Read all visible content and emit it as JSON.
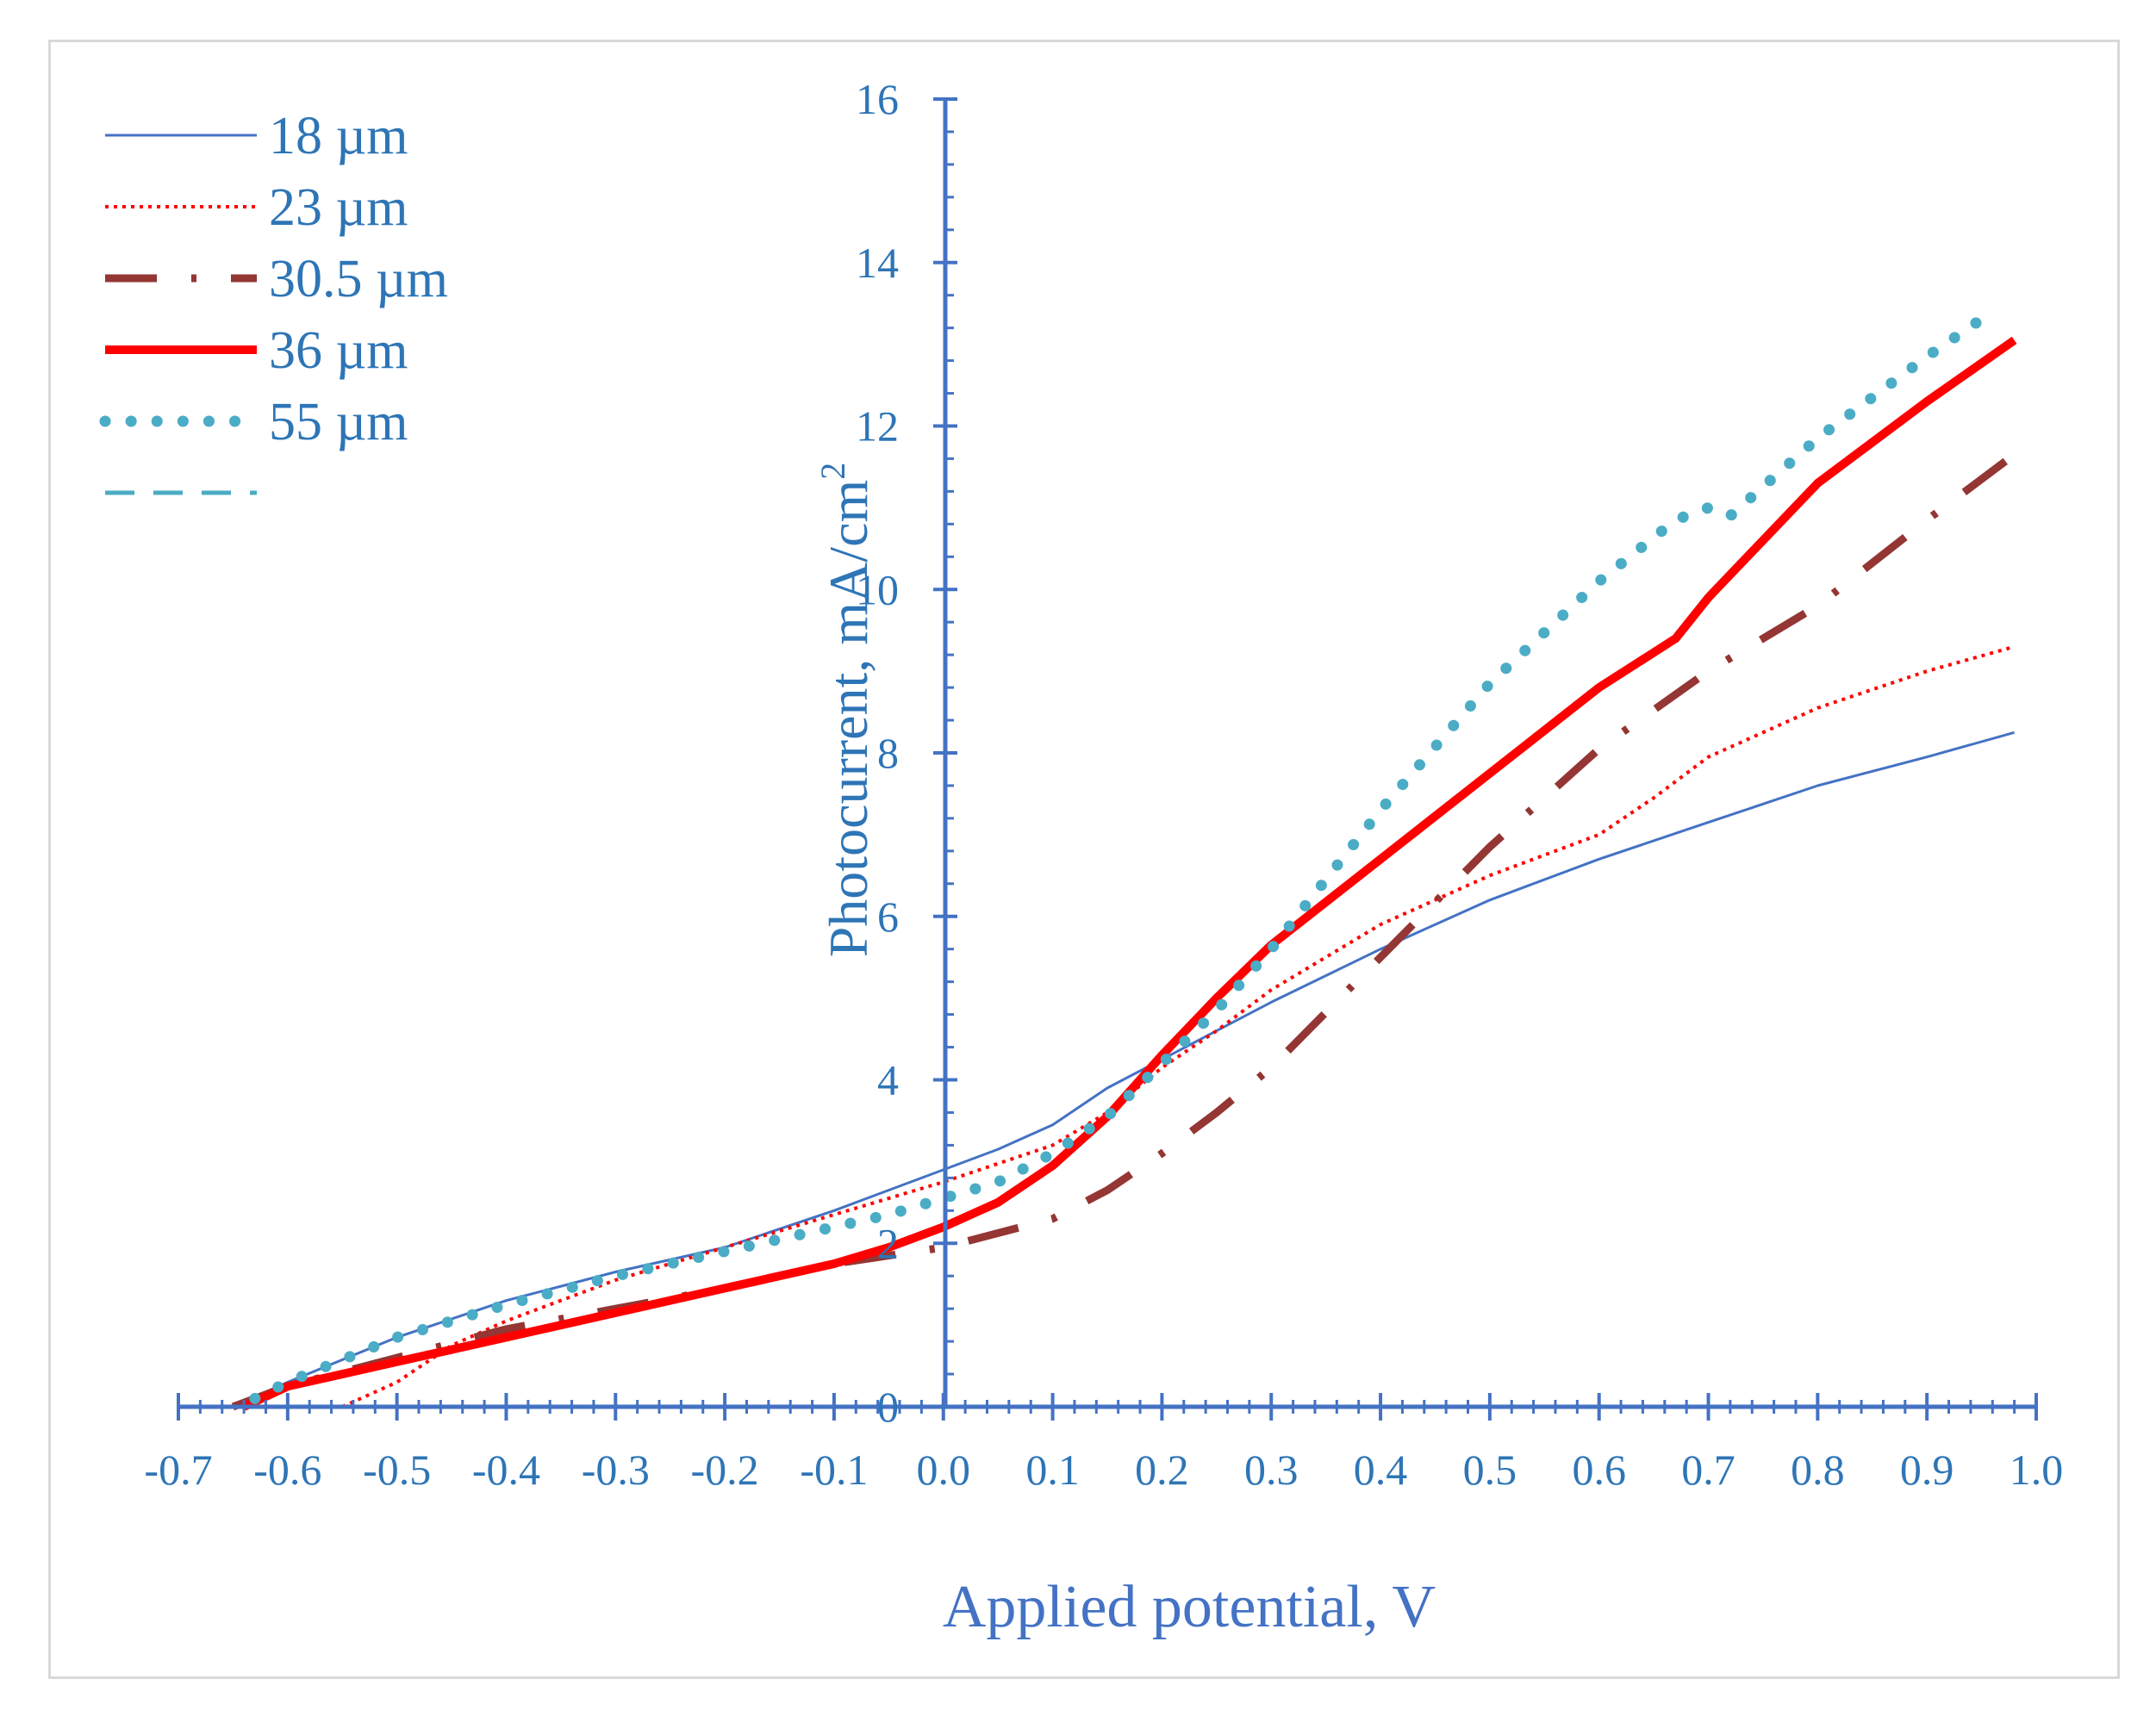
{
  "chart_data": {
    "type": "line",
    "title": "",
    "xlabel": "Applied potential, V",
    "ylabel": "Photocurrent, mA/cm",
    "ylabel_superscript": "2",
    "xlim": [
      -0.7,
      1.0
    ],
    "ylim": [
      0,
      16
    ],
    "x_ticks": [
      "-0.7",
      "-0.6",
      "-0.5",
      "-0.4",
      "-0.3",
      "-0.2",
      "-0.1",
      "0.0",
      "0.1",
      "0.2",
      "0.3",
      "0.4",
      "0.5",
      "0.6",
      "0.7",
      "0.8",
      "0.9",
      "1.0"
    ],
    "y_ticks": [
      "0",
      "2",
      "4",
      "6",
      "8",
      "10",
      "12",
      "14",
      "16"
    ],
    "grid": false,
    "legend_position": "top-left",
    "series": [
      {
        "name": "18 µm",
        "color": "#4472c4",
        "style": "solid-thin",
        "x": [
          -0.65,
          -0.6,
          -0.5,
          -0.4,
          -0.3,
          -0.2,
          -0.1,
          0.0,
          0.05,
          0.1,
          0.15,
          0.2,
          0.25,
          0.3,
          0.4,
          0.5,
          0.6,
          0.7,
          0.8,
          0.9,
          0.98
        ],
        "values": [
          0.0,
          0.3,
          0.85,
          1.3,
          1.65,
          1.95,
          2.4,
          2.9,
          3.15,
          3.45,
          3.9,
          4.25,
          4.6,
          4.95,
          5.6,
          6.2,
          6.7,
          7.15,
          7.6,
          7.95,
          8.25
        ]
      },
      {
        "name": "23 µm",
        "color": "#ff0000",
        "style": "dotted",
        "x": [
          -0.55,
          -0.5,
          -0.45,
          -0.4,
          -0.3,
          -0.2,
          -0.1,
          0.0,
          0.1,
          0.15,
          0.2,
          0.25,
          0.3,
          0.4,
          0.5,
          0.6,
          0.65,
          0.7,
          0.8,
          0.9,
          0.98
        ],
        "values": [
          0.0,
          0.3,
          0.75,
          1.05,
          1.55,
          1.95,
          2.35,
          2.75,
          3.2,
          3.6,
          4.15,
          4.6,
          5.1,
          5.9,
          6.5,
          7.0,
          7.45,
          7.95,
          8.55,
          9.0,
          9.3
        ]
      },
      {
        "name": "30.5 µm",
        "color": "#943634",
        "style": "dash-dot",
        "x": [
          -0.65,
          -0.6,
          -0.5,
          -0.4,
          -0.3,
          -0.2,
          -0.1,
          0.0,
          0.1,
          0.15,
          0.2,
          0.25,
          0.3,
          0.4,
          0.5,
          0.6,
          0.7,
          0.8,
          0.9,
          0.98
        ],
        "values": [
          0.0,
          0.25,
          0.6,
          0.95,
          1.2,
          1.45,
          1.75,
          1.95,
          2.3,
          2.65,
          3.1,
          3.6,
          4.15,
          5.5,
          6.85,
          8.05,
          9.0,
          9.8,
          10.85,
          11.65
        ]
      },
      {
        "name": "36 µm",
        "color": "#ff0000",
        "style": "solid-thick",
        "x": [
          -0.64,
          -0.6,
          -0.5,
          -0.4,
          -0.3,
          -0.2,
          -0.1,
          -0.05,
          0.0,
          0.05,
          0.1,
          0.15,
          0.2,
          0.25,
          0.3,
          0.4,
          0.5,
          0.6,
          0.67,
          0.7,
          0.75,
          0.8,
          0.9,
          0.98
        ],
        "values": [
          0.0,
          0.25,
          0.55,
          0.85,
          1.15,
          1.45,
          1.75,
          1.95,
          2.2,
          2.5,
          2.95,
          3.55,
          4.3,
          5.0,
          5.65,
          6.7,
          7.75,
          8.8,
          9.4,
          9.9,
          10.6,
          11.3,
          12.3,
          13.05
        ]
      },
      {
        "name": "55 µm",
        "color": "#4bacc6",
        "style": "round-dots",
        "x": [
          -0.63,
          -0.6,
          -0.5,
          -0.4,
          -0.3,
          -0.2,
          -0.1,
          -0.05,
          0.0,
          0.05,
          0.1,
          0.15,
          0.2,
          0.25,
          0.3,
          0.35,
          0.4,
          0.5,
          0.6,
          0.67,
          0.7,
          0.72,
          0.8,
          0.9,
          0.96
        ],
        "values": [
          0.1,
          0.3,
          0.85,
          1.25,
          1.6,
          1.9,
          2.2,
          2.35,
          2.55,
          2.75,
          3.1,
          3.55,
          4.2,
          4.85,
          5.6,
          6.45,
          7.3,
          8.85,
          10.1,
          10.85,
          11.0,
          10.9,
          11.85,
          12.85,
          13.4
        ]
      }
    ],
    "extra_legend_entry": {
      "name": "",
      "color": "#4bacc6",
      "style": "dashed"
    }
  }
}
